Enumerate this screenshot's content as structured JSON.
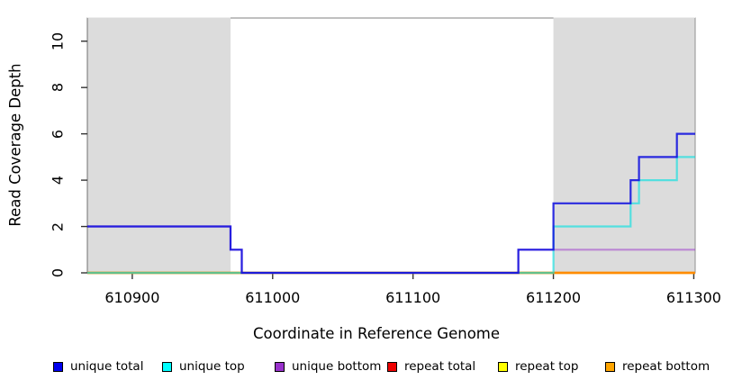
{
  "figure": {
    "x_axis_title": "Coordinate in Reference Genome",
    "y_axis_title": "Read Coverage Depth"
  },
  "chart_data": {
    "type": "line",
    "subtype": "step-coverage-plot",
    "title": "",
    "xlabel": "Coordinate in Reference Genome",
    "ylabel": "Read Coverage Depth",
    "xlim": [
      610868,
      611301
    ],
    "ylim": [
      0,
      11
    ],
    "grid": false,
    "x_ticks": [
      610900,
      611000,
      611100,
      611200,
      611300
    ],
    "x_tick_labels": [
      "610900",
      "611000",
      "611100",
      "611200",
      "611300"
    ],
    "y_ticks": [
      0,
      2,
      4,
      6,
      8,
      10
    ],
    "y_tick_labels": [
      "0",
      "2",
      "4",
      "6",
      "8",
      "10"
    ],
    "shaded_regions": [
      {
        "name": "repeat-region-left",
        "x0": 610868,
        "x1": 610970,
        "color": "#DCDCDC"
      },
      {
        "name": "repeat-region-right",
        "x0": 611200,
        "x1": 611301,
        "color": "#DCDCDC"
      }
    ],
    "box_color": "#808080",
    "tick_color": "#333333",
    "series": [
      {
        "name": "repeat total",
        "color": "#DD0000",
        "opacity": 0.9,
        "width": 2.2,
        "points": [
          [
            610868,
            0
          ],
          [
            611301,
            0
          ]
        ]
      },
      {
        "name": "repeat top",
        "color": "#FFFF00",
        "opacity": 0.9,
        "width": 2.2,
        "points": [
          [
            610868,
            0
          ],
          [
            611301,
            0
          ]
        ]
      },
      {
        "name": "repeat bottom",
        "color": "#FF8C00",
        "opacity": 1.0,
        "width": 2.6,
        "points": [
          [
            610868,
            0
          ],
          [
            611301,
            0
          ]
        ]
      },
      {
        "name": "unique top",
        "color": "#00E0E0",
        "opacity": 0.62,
        "width": 2.2,
        "points": [
          [
            610868,
            0
          ],
          [
            611200,
            0
          ],
          [
            611200,
            2
          ],
          [
            611255,
            2
          ],
          [
            611255,
            3
          ],
          [
            611261,
            3
          ],
          [
            611261,
            4
          ],
          [
            611288,
            4
          ],
          [
            611288,
            5
          ],
          [
            611301,
            5
          ]
        ]
      },
      {
        "name": "unique bottom",
        "color": "#9932CC",
        "opacity": 0.5,
        "width": 2.2,
        "points": [
          [
            610868,
            2
          ],
          [
            610970,
            2
          ],
          [
            610970,
            1
          ],
          [
            610978,
            1
          ],
          [
            610978,
            0
          ],
          [
            611175,
            0
          ],
          [
            611175,
            1
          ],
          [
            611301,
            1
          ]
        ]
      },
      {
        "name": "unique total",
        "color": "#0A0ADF",
        "opacity": 0.85,
        "width": 2.2,
        "points": [
          [
            610868,
            2
          ],
          [
            610970,
            2
          ],
          [
            610970,
            1
          ],
          [
            610978,
            1
          ],
          [
            610978,
            0
          ],
          [
            611175,
            0
          ],
          [
            611175,
            1
          ],
          [
            611200,
            1
          ],
          [
            611200,
            3
          ],
          [
            611255,
            3
          ],
          [
            611255,
            4
          ],
          [
            611261,
            4
          ],
          [
            611261,
            5
          ],
          [
            611288,
            5
          ],
          [
            611288,
            6
          ],
          [
            611301,
            6
          ]
        ]
      }
    ],
    "legend": {
      "position": "bottom",
      "entries": [
        {
          "label": "unique total",
          "color": "#0000EE"
        },
        {
          "label": "unique top",
          "color": "#00FFFF"
        },
        {
          "label": "unique bottom",
          "color": "#9932CC"
        },
        {
          "label": "repeat total",
          "color": "#EE0000"
        },
        {
          "label": "repeat top",
          "color": "#FFFF00"
        },
        {
          "label": "repeat bottom",
          "color": "#FFA500"
        }
      ]
    }
  }
}
